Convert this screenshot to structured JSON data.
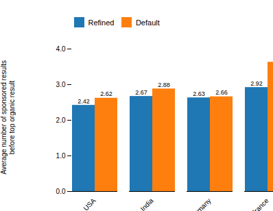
{
  "chart_data": {
    "type": "bar",
    "ylabel": "Average number of sponsored results\nbefore top organic result",
    "categories": [
      "USA",
      "India",
      "Germany",
      "France"
    ],
    "series": [
      {
        "name": "Refined",
        "color": "#1f77b4",
        "values": [
          2.42,
          2.67,
          2.63,
          2.92
        ]
      },
      {
        "name": "Default",
        "color": "#ff7f0e",
        "values": [
          2.62,
          2.88,
          2.66,
          3.63
        ]
      }
    ],
    "ylim": [
      0,
      4
    ],
    "yticks": [
      0,
      1,
      2,
      3,
      4
    ],
    "data_labels": true,
    "legend": "top",
    "grid": false
  }
}
